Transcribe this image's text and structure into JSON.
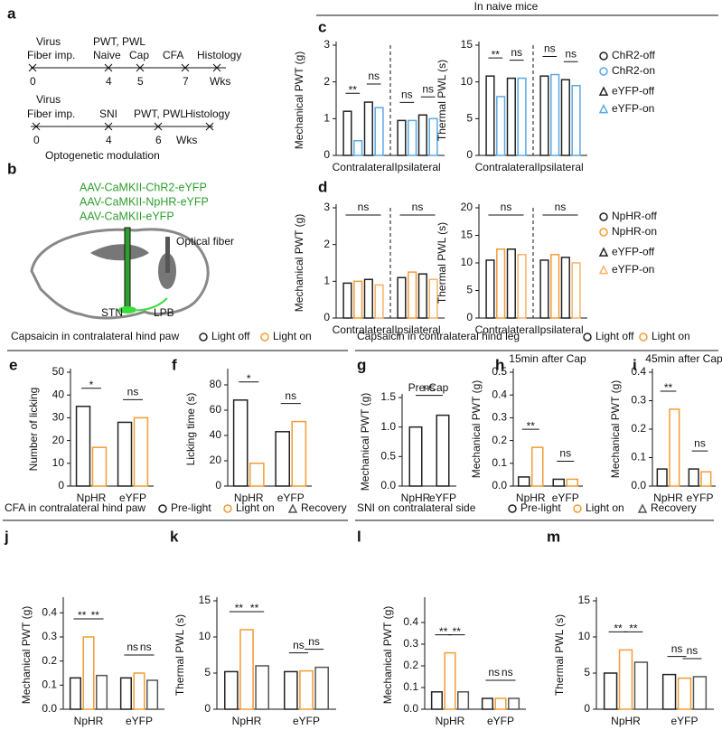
{
  "panel_a": {
    "label": "a",
    "texts": [
      "Virus",
      "Fiber imp.",
      "PWT, PWL",
      "Naive",
      "Cap",
      "CFA",
      "Histology",
      "0",
      "4",
      "5",
      "7",
      "Wks",
      "Virus",
      "Fiber imp.",
      "SNI",
      "PWT, PWL",
      "Histology",
      "0",
      "4",
      "6",
      "Wks",
      "Optogenetic modulation"
    ]
  },
  "panel_b": {
    "label": "b",
    "texts": [
      "AAV-CaMKII-ChR2-eYFP",
      "AAV-CaMKII-NpHR-eYFP",
      "AAV-CaMKII-eYFP",
      "Optical fiber",
      "STN",
      "LPB"
    ]
  },
  "headers": [
    "In naive mice",
    "Capsaicin in contralateral hind paw",
    "Capsaicin in contralateral hind leg",
    "CFA in contralateral hind paw",
    "SNI on contralateral side"
  ],
  "chart_data": [
    {
      "type": "bar",
      "label": "c",
      "ylabel": "Mechanical PWT (g)",
      "categories": [
        "Contralateral",
        "Ipsilateral"
      ],
      "divider": true,
      "series": [
        {
          "color": "#222222",
          "values": [
            1.2,
            0.95
          ]
        },
        {
          "color": "#5aa9e6",
          "values": [
            0.4,
            0.95
          ]
        },
        {
          "color": "#222222",
          "values": [
            1.45,
            1.1
          ]
        },
        {
          "color": "#5aa9e6",
          "values": [
            1.3,
            1.0
          ]
        }
      ],
      "ylim": [
        0,
        3
      ],
      "yticks": [
        0,
        1,
        2,
        3
      ],
      "sig": [
        [
          "**",
          "ns"
        ],
        [
          "ns",
          "ns"
        ]
      ]
    },
    {
      "type": "bar",
      "ylabel": "Thermal PWL (s)",
      "categories": [
        "Contralateral",
        "Ipsilateral"
      ],
      "divider": true,
      "series": [
        {
          "name": "ChR2-off",
          "marker": "circle",
          "color": "#222222",
          "values": [
            10.8,
            10.8
          ]
        },
        {
          "name": "ChR2-on",
          "marker": "circle",
          "color": "#5aa9e6",
          "values": [
            8.0,
            11.0
          ]
        },
        {
          "name": "eYFP-off",
          "marker": "triangle",
          "color": "#222222",
          "values": [
            10.5,
            10.3
          ]
        },
        {
          "name": "eYFP-on",
          "marker": "triangle",
          "color": "#5aa9e6",
          "values": [
            10.5,
            9.5
          ]
        }
      ],
      "ylim": [
        0,
        15
      ],
      "yticks": [
        0,
        5,
        10,
        15
      ],
      "sig": [
        [
          "**",
          "ns"
        ],
        [
          "ns",
          "ns"
        ]
      ]
    },
    {
      "type": "bar",
      "label": "d",
      "ylabel": "Mechanical PWT (g)",
      "categories": [
        "Contralateral",
        "Ipsilateral"
      ],
      "divider": true,
      "series": [
        {
          "color": "#222222",
          "values": [
            0.95,
            1.1
          ]
        },
        {
          "color": "#f39c34",
          "values": [
            1.0,
            1.25
          ]
        },
        {
          "color": "#222222",
          "values": [
            1.05,
            1.2
          ]
        },
        {
          "color": "#f7b267",
          "values": [
            0.9,
            1.05
          ]
        }
      ],
      "ylim": [
        0,
        3
      ],
      "yticks": [
        0,
        1,
        2,
        3
      ],
      "sig": [
        [
          "ns"
        ],
        [
          "ns"
        ]
      ]
    },
    {
      "type": "bar",
      "ylabel": "Thermal PWL (s)",
      "categories": [
        "Contralateral",
        "Ipsilateral"
      ],
      "divider": true,
      "series": [
        {
          "name": "NpHR-off",
          "marker": "circle",
          "color": "#222222",
          "values": [
            10.5,
            10.5
          ]
        },
        {
          "name": "NpHR-on",
          "marker": "circle",
          "color": "#f39c34",
          "values": [
            12.5,
            11.5
          ]
        },
        {
          "name": "eYFP-off",
          "marker": "triangle",
          "color": "#222222",
          "values": [
            12.5,
            11.0
          ]
        },
        {
          "name": "eYFP-on",
          "marker": "triangle",
          "color": "#f7b267",
          "values": [
            11.5,
            10.0
          ]
        }
      ],
      "ylim": [
        0,
        20
      ],
      "yticks": [
        0,
        5,
        10,
        15,
        20
      ],
      "sig": [
        [
          "ns"
        ],
        [
          "ns"
        ]
      ]
    },
    {
      "type": "bar",
      "label": "e",
      "ylabel": "Number of licking",
      "categories": [
        "NpHR",
        "eYFP"
      ],
      "series": [
        {
          "name": "Light off",
          "marker": "circle",
          "color": "#222222",
          "values": [
            35,
            28
          ]
        },
        {
          "name": "Light on",
          "marker": "circle",
          "color": "#f39c34",
          "values": [
            17,
            30
          ]
        }
      ],
      "ylim": [
        0,
        50
      ],
      "yticks": [
        0,
        10,
        20,
        30,
        40,
        50
      ],
      "sig": [
        [
          "*"
        ],
        [
          "ns"
        ]
      ]
    },
    {
      "type": "bar",
      "label": "f",
      "ylabel": "Licking time (s)",
      "categories": [
        "NpHR",
        "eYFP"
      ],
      "series": [
        {
          "color": "#222222",
          "values": [
            68,
            43
          ]
        },
        {
          "color": "#f39c34",
          "values": [
            18,
            51
          ]
        }
      ],
      "ylim": [
        0,
        90
      ],
      "yticks": [
        0,
        20,
        40,
        60,
        80
      ],
      "sig": [
        [
          "*"
        ],
        [
          "ns"
        ]
      ]
    },
    {
      "type": "bar",
      "label": "g",
      "title": "Pre-Cap",
      "ylabel": "Mechanical PWT (g)",
      "categories": [
        "NpHR",
        "eYFP"
      ],
      "series": [
        {
          "color": "#222222",
          "values": [
            1.0,
            1.2
          ]
        }
      ],
      "ylim": [
        0,
        1.5
      ],
      "yticks": [
        {
          "value": 0,
          "label": "0.0"
        },
        0.5,
        {
          "value": 1,
          "label": "1.0"
        },
        1.5
      ],
      "sig_across": "ns"
    },
    {
      "type": "bar",
      "label": "h",
      "title": "15min after Cap",
      "ylabel": "Mechanical PWT (g)",
      "categories": [
        "NpHR",
        "eYFP"
      ],
      "series": [
        {
          "name": "Light off",
          "marker": "circle",
          "color": "#222222",
          "values": [
            0.04,
            0.03
          ]
        },
        {
          "name": "Light on",
          "marker": "circle",
          "color": "#f39c34",
          "values": [
            0.17,
            0.03
          ]
        }
      ],
      "ylim": [
        0,
        0.5
      ],
      "yticks": [
        {
          "value": 0,
          "label": "0.0"
        },
        0.1,
        0.2,
        0.3,
        0.4,
        0.5
      ],
      "sig": [
        [
          "**"
        ],
        [
          "ns"
        ]
      ]
    },
    {
      "type": "bar",
      "label": "i",
      "title": "45min after Cap",
      "ylabel": "Mechanical PWT (g)",
      "categories": [
        "NpHR",
        "eYFP"
      ],
      "series": [
        {
          "color": "#222222",
          "values": [
            0.06,
            0.06
          ]
        },
        {
          "color": "#f39c34",
          "values": [
            0.27,
            0.05
          ]
        }
      ],
      "ylim": [
        0,
        0.4
      ],
      "yticks": [
        {
          "value": 0,
          "label": "0.0"
        },
        0.1,
        0.2,
        0.3,
        0.4
      ],
      "sig": [
        [
          "**"
        ],
        [
          "ns"
        ]
      ]
    },
    {
      "type": "bar",
      "label": "j",
      "ylabel": "Mechanical PWT (g)",
      "categories": [
        "NpHR",
        "eYFP"
      ],
      "series": [
        {
          "name": "Pre-light",
          "marker": "circle",
          "color": "#222222",
          "values": [
            0.13,
            0.13
          ]
        },
        {
          "name": "Light on",
          "marker": "circle",
          "color": "#f39c34",
          "values": [
            0.3,
            0.15
          ]
        },
        {
          "name": "Recovery",
          "marker": "triangle",
          "color": "#555555",
          "values": [
            0.14,
            0.12
          ]
        }
      ],
      "ylim": [
        0,
        0.45
      ],
      "yticks": [
        {
          "value": 0,
          "label": "0.0"
        },
        0.1,
        0.2,
        0.3,
        0.4
      ],
      "sig": [
        [
          "**",
          "**"
        ],
        [
          "ns",
          "ns"
        ]
      ]
    },
    {
      "type": "bar",
      "label": "k",
      "ylabel": "Thermal PWL (s)",
      "categories": [
        "NpHR",
        "eYFP"
      ],
      "series": [
        {
          "color": "#222222",
          "values": [
            5.2,
            5.2
          ]
        },
        {
          "color": "#f39c34",
          "values": [
            11.0,
            5.3
          ]
        },
        {
          "color": "#555555",
          "values": [
            6.0,
            5.8
          ]
        }
      ],
      "ylim": [
        0,
        15
      ],
      "yticks": [
        0,
        5,
        10,
        15
      ],
      "sig": [
        [
          "**",
          "**"
        ],
        [
          "ns",
          "ns"
        ]
      ]
    },
    {
      "type": "bar",
      "label": "l",
      "ylabel": "Mechanical PWT (g)",
      "categories": [
        "NpHR",
        "eYFP"
      ],
      "series": [
        {
          "name": "Pre-light",
          "marker": "circle",
          "color": "#222222",
          "values": [
            0.08,
            0.05
          ]
        },
        {
          "name": "Light on",
          "marker": "circle",
          "color": "#f39c34",
          "values": [
            0.26,
            0.05
          ]
        },
        {
          "name": "Recovery",
          "marker": "triangle",
          "color": "#555555",
          "values": [
            0.08,
            0.05
          ]
        }
      ],
      "ylim": [
        0,
        0.5
      ],
      "yticks": [
        {
          "value": 0,
          "label": "0.0"
        },
        0.1,
        0.2,
        0.3,
        0.4
      ],
      "sig": [
        [
          "**",
          "**"
        ],
        [
          "ns",
          "ns"
        ]
      ]
    },
    {
      "type": "bar",
      "label": "m",
      "ylabel": "Thermal PWL (s)",
      "categories": [
        "NpHR",
        "eYFP"
      ],
      "series": [
        {
          "color": "#222222",
          "values": [
            5.0,
            4.8
          ]
        },
        {
          "color": "#f39c34",
          "values": [
            8.2,
            4.3
          ]
        },
        {
          "color": "#555555",
          "values": [
            6.5,
            4.5
          ]
        }
      ],
      "ylim": [
        0,
        15
      ],
      "yticks": [
        0,
        5,
        10,
        15
      ],
      "sig": [
        [
          "**",
          "**"
        ],
        [
          "ns",
          "ns"
        ]
      ]
    }
  ]
}
